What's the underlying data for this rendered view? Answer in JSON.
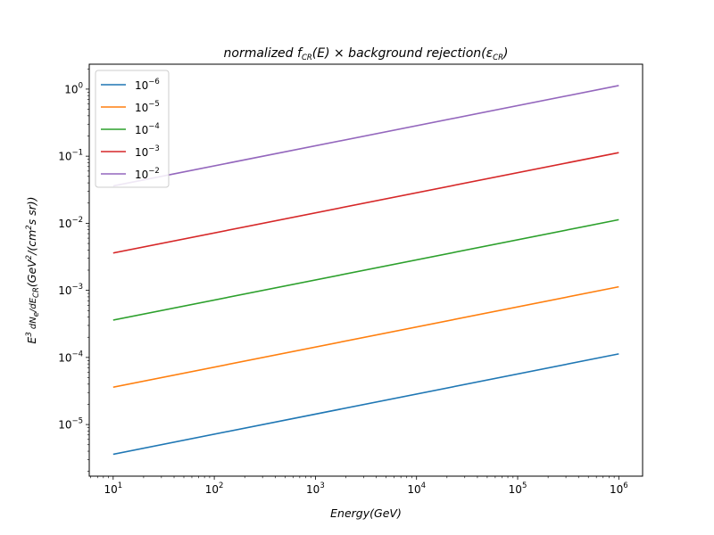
{
  "chart_data": {
    "type": "line",
    "title_parts": [
      "normalized f",
      "CR",
      "(E) × background rejection(ε",
      "CR",
      ")"
    ],
    "xlabel": "Energy(GeV)",
    "ylabel_parts": [
      "E",
      "3",
      " dN",
      "e",
      "/dE",
      "CR",
      "(GeV",
      "2",
      "/(cm",
      "2",
      "s sr))"
    ],
    "x_scale": "log",
    "y_scale": "log",
    "xlim": [
      5.8,
      1720000.0
    ],
    "ylim": [
      1.7e-06,
      2.35
    ],
    "x_ticks": [
      {
        "value": 10,
        "base": "10",
        "exp": "1"
      },
      {
        "value": 100,
        "base": "10",
        "exp": "2"
      },
      {
        "value": 1000,
        "base": "10",
        "exp": "3"
      },
      {
        "value": 10000,
        "base": "10",
        "exp": "4"
      },
      {
        "value": 100000,
        "base": "10",
        "exp": "5"
      },
      {
        "value": 1000000,
        "base": "10",
        "exp": "6"
      }
    ],
    "y_ticks": [
      {
        "value": 1e-05,
        "base": "10",
        "exp": "−5"
      },
      {
        "value": 0.0001,
        "base": "10",
        "exp": "−4"
      },
      {
        "value": 0.001,
        "base": "10",
        "exp": "−3"
      },
      {
        "value": 0.01,
        "base": "10",
        "exp": "−2"
      },
      {
        "value": 0.1,
        "base": "10",
        "exp": "−1"
      },
      {
        "value": 1,
        "base": "10",
        "exp": "0"
      }
    ],
    "legend_position": "top-left",
    "grid": false,
    "series": [
      {
        "name_base": "10",
        "name_exp": "−6",
        "color": "#1f77b4",
        "x": [
          10,
          1000000
        ],
        "y": [
          3.6e-06,
          0.000113
        ]
      },
      {
        "name_base": "10",
        "name_exp": "−5",
        "color": "#ff7f0e",
        "x": [
          10,
          1000000
        ],
        "y": [
          3.6e-05,
          0.00113
        ]
      },
      {
        "name_base": "10",
        "name_exp": "−4",
        "color": "#2ca02c",
        "x": [
          10,
          1000000
        ],
        "y": [
          0.00036,
          0.0113
        ]
      },
      {
        "name_base": "10",
        "name_exp": "−3",
        "color": "#d62728",
        "x": [
          10,
          1000000
        ],
        "y": [
          0.0036,
          0.113
        ]
      },
      {
        "name_base": "10",
        "name_exp": "−2",
        "color": "#9467bd",
        "x": [
          10,
          1000000
        ],
        "y": [
          0.036,
          1.13
        ]
      }
    ]
  }
}
